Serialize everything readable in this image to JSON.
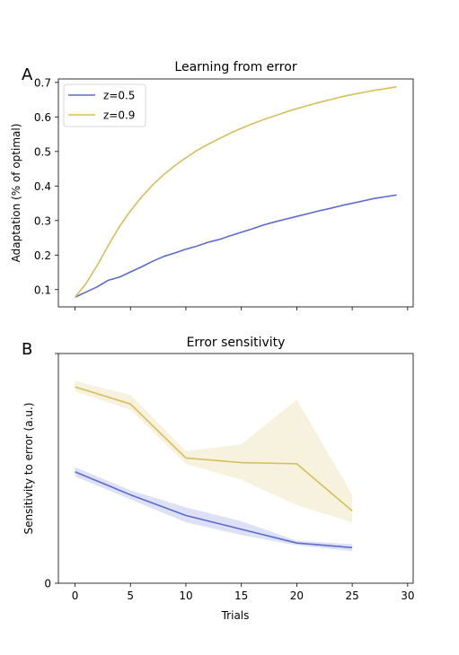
{
  "chart_data": [
    {
      "type": "line",
      "panel_letter": "A",
      "title": "Learning from error",
      "xlabel": "",
      "ylabel": "Adaptation (% of optimal)",
      "xlim": [
        -1.5,
        30.5
      ],
      "ylim": [
        0.05,
        0.71
      ],
      "x_ticks": [
        0,
        5,
        10,
        15,
        20,
        25,
        30
      ],
      "y_ticks": [
        0.1,
        0.2,
        0.3,
        0.4,
        0.5,
        0.6,
        0.7
      ],
      "y_tick_labels": [
        "0.1",
        "0.2",
        "0.3",
        "0.4",
        "0.5",
        "0.6",
        "0.7"
      ],
      "show_x_tick_labels": false,
      "grid": false,
      "legend": "top-left",
      "x": [
        0,
        1,
        2,
        3,
        4,
        5,
        6,
        7,
        8,
        9,
        10,
        11,
        12,
        13,
        14,
        15,
        16,
        17,
        18,
        19,
        20,
        21,
        22,
        23,
        24,
        25,
        26,
        27,
        28,
        29
      ],
      "series": [
        {
          "name": "z=0.5",
          "color": "#5b6bcc",
          "values": [
            0.078,
            0.093,
            0.108,
            0.127,
            0.136,
            0.151,
            0.166,
            0.182,
            0.196,
            0.206,
            0.217,
            0.226,
            0.237,
            0.245,
            0.256,
            0.266,
            0.276,
            0.287,
            0.296,
            0.304,
            0.312,
            0.32,
            0.328,
            0.335,
            0.343,
            0.35,
            0.357,
            0.364,
            0.369,
            0.374
          ]
        },
        {
          "name": "z=0.9",
          "color": "#d4bf5a",
          "values": [
            0.078,
            0.118,
            0.17,
            0.228,
            0.282,
            0.328,
            0.368,
            0.403,
            0.433,
            0.459,
            0.482,
            0.503,
            0.521,
            0.537,
            0.553,
            0.567,
            0.58,
            0.592,
            0.603,
            0.614,
            0.624,
            0.633,
            0.642,
            0.65,
            0.658,
            0.665,
            0.671,
            0.677,
            0.682,
            0.687
          ]
        }
      ]
    },
    {
      "type": "line",
      "panel_letter": "B",
      "title": "Error sensitivity",
      "xlabel": "Trials",
      "ylabel": "Sensitivity to error (a.u.)",
      "xlim": [
        -1.5,
        30.5
      ],
      "ylim": [
        0,
        1
      ],
      "x_ticks": [
        0,
        5,
        10,
        15,
        20,
        25,
        30
      ],
      "x_tick_labels": [
        "0",
        "5",
        "10",
        "15",
        "20",
        "25",
        "30"
      ],
      "y_ticks": [
        0,
        1
      ],
      "y_tick_labels": [
        "0",
        ""
      ],
      "grid": false,
      "legend": "none",
      "x": [
        0,
        5,
        10,
        15,
        20,
        25
      ],
      "series": [
        {
          "color": "#5b6bcc",
          "values": [
            0.485,
            0.385,
            0.295,
            0.235,
            0.175,
            0.155
          ],
          "lower": [
            0.465,
            0.365,
            0.265,
            0.21,
            0.165,
            0.14
          ],
          "upper": [
            0.505,
            0.405,
            0.33,
            0.27,
            0.185,
            0.17
          ]
        },
        {
          "color": "#d4bf5a",
          "values": [
            0.855,
            0.78,
            0.545,
            0.525,
            0.52,
            0.315
          ],
          "lower": [
            0.835,
            0.755,
            0.52,
            0.45,
            0.34,
            0.265
          ],
          "upper": [
            0.88,
            0.82,
            0.575,
            0.605,
            0.8,
            0.385
          ]
        }
      ]
    }
  ]
}
